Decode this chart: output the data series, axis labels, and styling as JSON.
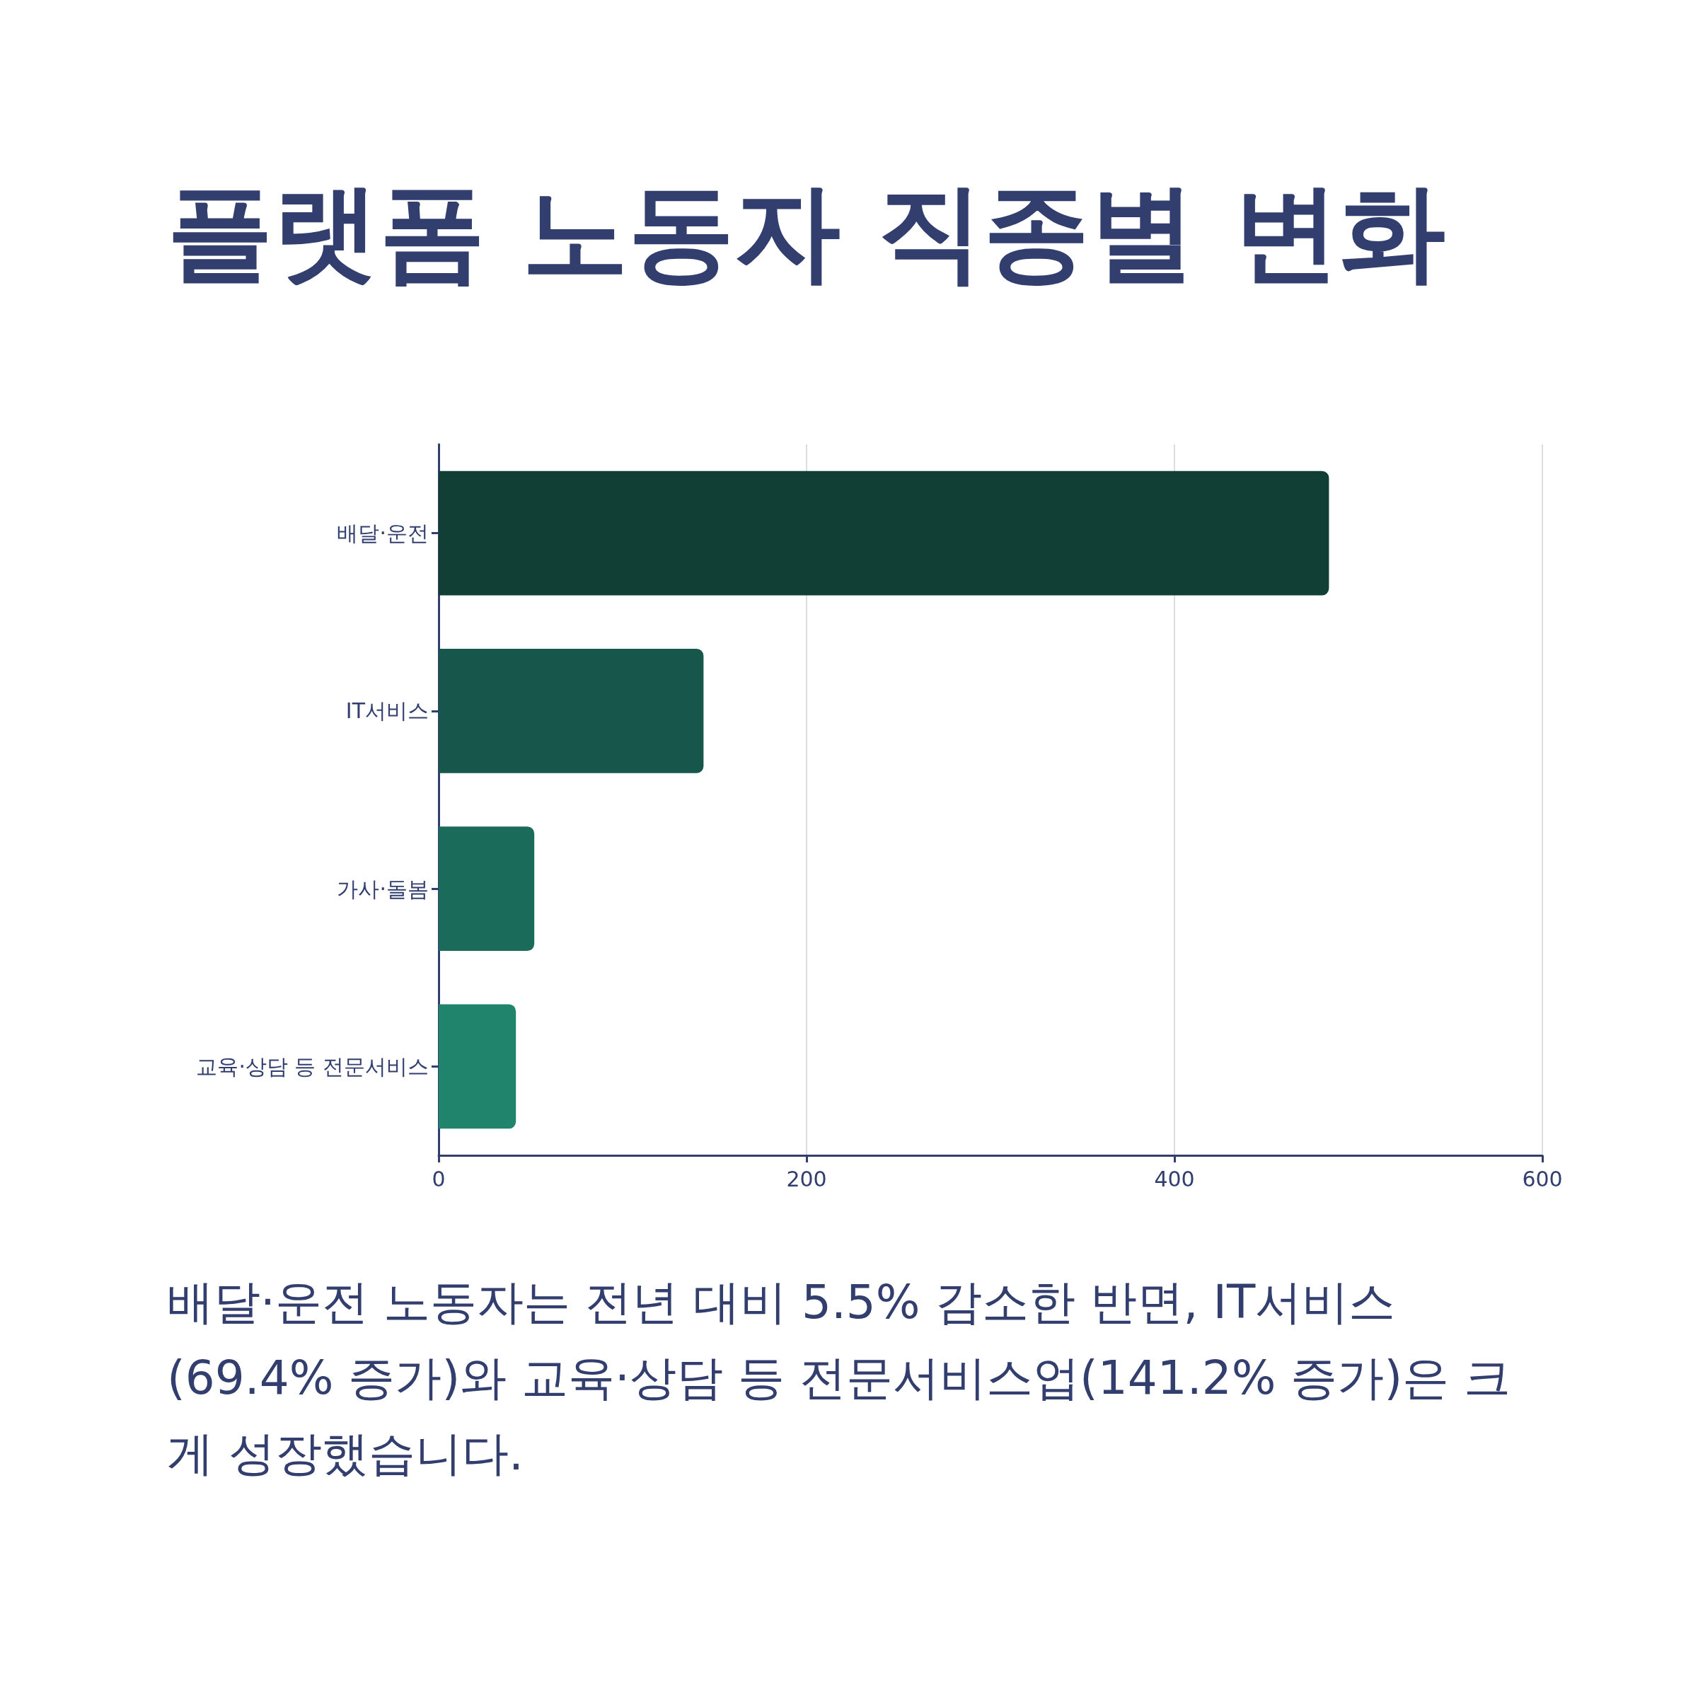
{
  "chart_data": {
    "type": "bar",
    "title": "플랫폼 노동자 직종별 변화",
    "orientation": "horizontal",
    "categories": [
      "배달·운전",
      "IT서비스",
      "가사·돌봄",
      "교육·상담 등 전문서비스"
    ],
    "values": [
      484,
      144,
      52,
      42
    ],
    "colors": [
      "#113f35",
      "#17574b",
      "#1b6b5a",
      "#20846c"
    ],
    "xlim": [
      0,
      600
    ],
    "xticks": [
      0,
      200,
      400,
      600
    ],
    "grid": "x",
    "annotations": [
      "배달·운전 노동자는 전년 대비 5.5% 감소한 반면, IT서비스(69.4% 증가)와 교육·상담 등 전문서비스업(141.2% 증가)은 크게 성장했습니다."
    ]
  }
}
